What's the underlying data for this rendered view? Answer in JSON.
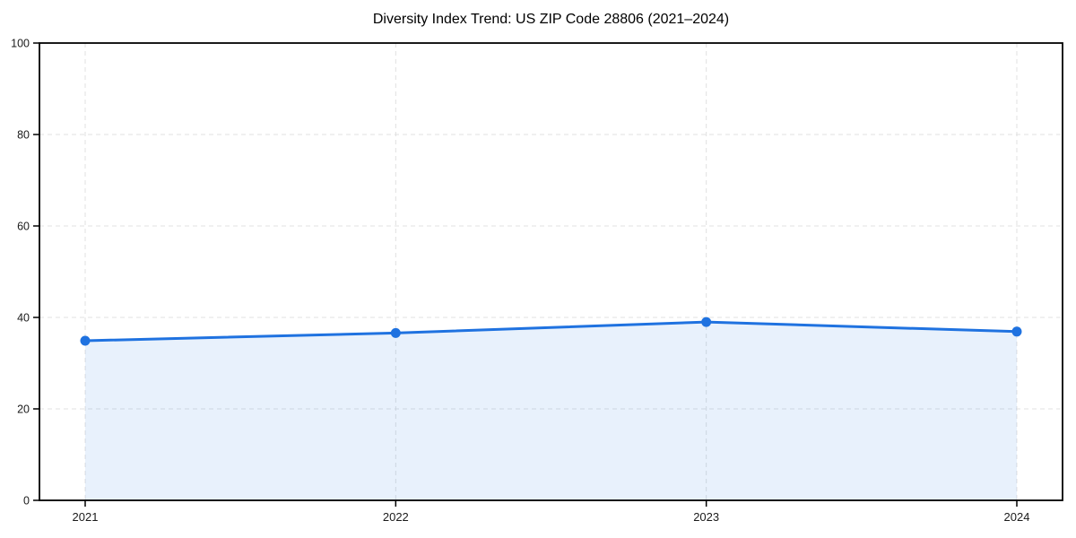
{
  "chart_data": {
    "type": "area",
    "title": "Diversity Index Trend: US ZIP Code 28806 (2021–2024)",
    "x": [
      2021,
      2022,
      2023,
      2024
    ],
    "xticks": [
      "2021",
      "2022",
      "2023",
      "2024"
    ],
    "series": [
      {
        "name": "Diversity Index",
        "values": [
          34.9,
          36.6,
          39.0,
          36.9
        ]
      }
    ],
    "xlabel": "",
    "ylabel": "",
    "ylim": [
      0,
      100
    ],
    "yticks": [
      0,
      20,
      40,
      60,
      80,
      100
    ],
    "grid": true,
    "grid_style": "dashed",
    "legend": "none",
    "colors": {
      "line": "#1f72e0",
      "marker": "#1f72e0",
      "fill": "#1f72e0",
      "fill_opacity": 0.1,
      "grid": "#e0e0e0",
      "spine": "#000000",
      "background": "#ffffff",
      "tick_text": "#1a1a1a"
    }
  }
}
